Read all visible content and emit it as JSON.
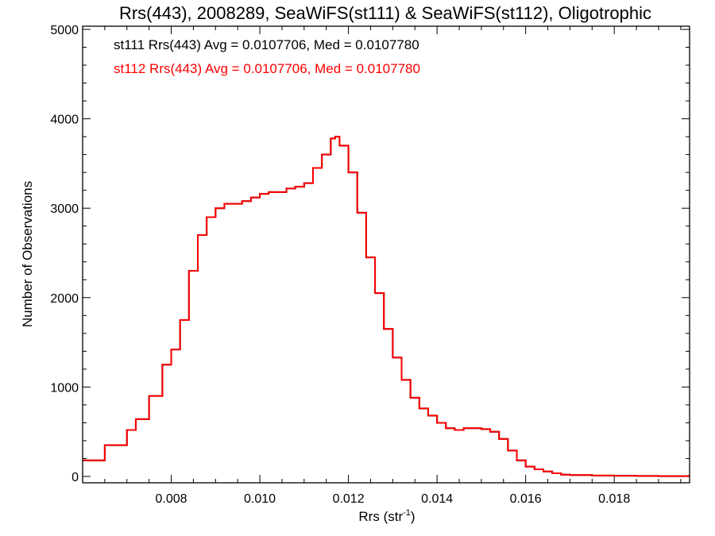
{
  "chart_data": {
    "type": "line",
    "title": "Rrs(443), 2008289, SeaWiFS(st111) & SeaWiFS(st112), Oligotrophic",
    "xlabel_main": "Rrs (str",
    "xlabel_sup": "-1",
    "xlabel_end": ")",
    "ylabel": "Number of Observations",
    "xlim": [
      0.006,
      0.0197
    ],
    "ylim": [
      0,
      5000
    ],
    "xticks": [
      "0.008",
      "0.010",
      "0.012",
      "0.014",
      "0.016",
      "0.018"
    ],
    "yticks": [
      "0",
      "1000",
      "2000",
      "3000",
      "4000",
      "5000"
    ],
    "grid": false,
    "annotations": [
      {
        "text": "st111 Rrs(443) Avg = 0.0107706, Med = 0.0107780",
        "color": "#000000"
      },
      {
        "text": "st112 Rrs(443) Avg = 0.0107706, Med = 0.0107780",
        "color": "#ff0000"
      }
    ],
    "series": [
      {
        "name": "st111",
        "color": "#000000",
        "x": [
          0.006,
          0.0065,
          0.007,
          0.0072,
          0.0075,
          0.0078,
          0.008,
          0.0082,
          0.0084,
          0.0086,
          0.0088,
          0.009,
          0.0092,
          0.0094,
          0.0096,
          0.0098,
          0.01,
          0.0102,
          0.0104,
          0.0106,
          0.0108,
          0.011,
          0.0112,
          0.0114,
          0.0116,
          0.0117,
          0.0118,
          0.012,
          0.0122,
          0.0124,
          0.0126,
          0.0128,
          0.013,
          0.0132,
          0.0134,
          0.0136,
          0.0138,
          0.014,
          0.0142,
          0.0144,
          0.0146,
          0.0148,
          0.015,
          0.0152,
          0.0154,
          0.0156,
          0.0158,
          0.016,
          0.0162,
          0.0164,
          0.0166,
          0.0168,
          0.017,
          0.0175,
          0.018,
          0.0185,
          0.019,
          0.0197
        ],
        "y": [
          180,
          350,
          520,
          640,
          900,
          1250,
          1420,
          1750,
          2300,
          2700,
          2900,
          3000,
          3050,
          3050,
          3080,
          3120,
          3160,
          3180,
          3180,
          3220,
          3240,
          3280,
          3450,
          3600,
          3780,
          3800,
          3700,
          3400,
          2950,
          2450,
          2050,
          1650,
          1330,
          1080,
          880,
          760,
          680,
          600,
          540,
          520,
          540,
          540,
          530,
          500,
          420,
          290,
          180,
          110,
          80,
          55,
          35,
          20,
          15,
          10,
          8,
          5,
          3,
          2
        ]
      },
      {
        "name": "st112",
        "color": "#ff0000",
        "x": [
          0.006,
          0.0065,
          0.007,
          0.0072,
          0.0075,
          0.0078,
          0.008,
          0.0082,
          0.0084,
          0.0086,
          0.0088,
          0.009,
          0.0092,
          0.0094,
          0.0096,
          0.0098,
          0.01,
          0.0102,
          0.0104,
          0.0106,
          0.0108,
          0.011,
          0.0112,
          0.0114,
          0.0116,
          0.0117,
          0.0118,
          0.012,
          0.0122,
          0.0124,
          0.0126,
          0.0128,
          0.013,
          0.0132,
          0.0134,
          0.0136,
          0.0138,
          0.014,
          0.0142,
          0.0144,
          0.0146,
          0.0148,
          0.015,
          0.0152,
          0.0154,
          0.0156,
          0.0158,
          0.016,
          0.0162,
          0.0164,
          0.0166,
          0.0168,
          0.017,
          0.0175,
          0.018,
          0.0185,
          0.019,
          0.0197
        ],
        "y": [
          180,
          350,
          520,
          640,
          900,
          1250,
          1420,
          1750,
          2300,
          2700,
          2900,
          3000,
          3050,
          3050,
          3080,
          3120,
          3160,
          3180,
          3180,
          3220,
          3240,
          3280,
          3450,
          3600,
          3780,
          3800,
          3700,
          3400,
          2950,
          2450,
          2050,
          1650,
          1330,
          1080,
          880,
          760,
          680,
          600,
          540,
          520,
          540,
          540,
          530,
          500,
          420,
          290,
          180,
          110,
          80,
          55,
          35,
          20,
          15,
          10,
          8,
          5,
          3,
          2
        ]
      }
    ]
  }
}
